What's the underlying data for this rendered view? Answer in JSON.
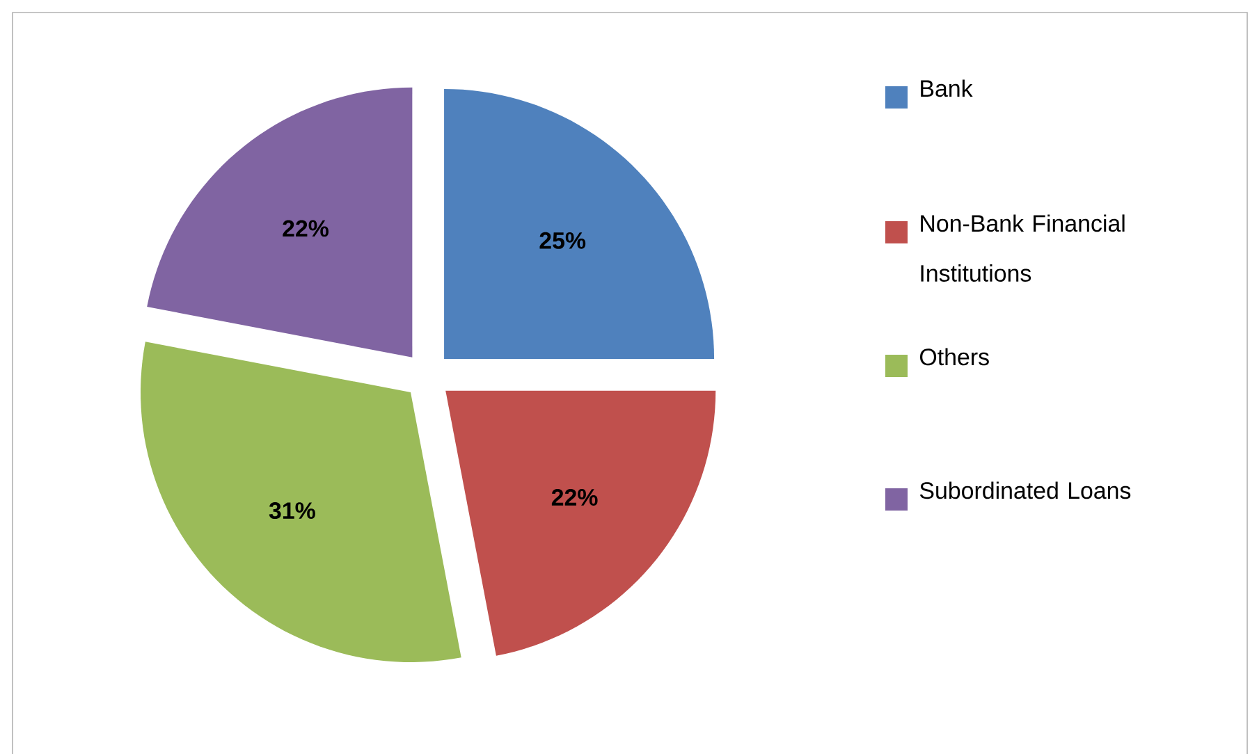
{
  "chart_data": {
    "type": "pie",
    "categories": [
      "Bank",
      "Non-Bank Financial Institutions",
      "Others",
      "Subordinated Loans"
    ],
    "values": [
      25,
      22,
      31,
      22
    ],
    "value_labels": [
      "25%",
      "22%",
      "31%",
      "22%"
    ],
    "colors": [
      "#4f81bd",
      "#c0504d",
      "#9bbb59",
      "#8064a2"
    ],
    "legend": "right"
  }
}
